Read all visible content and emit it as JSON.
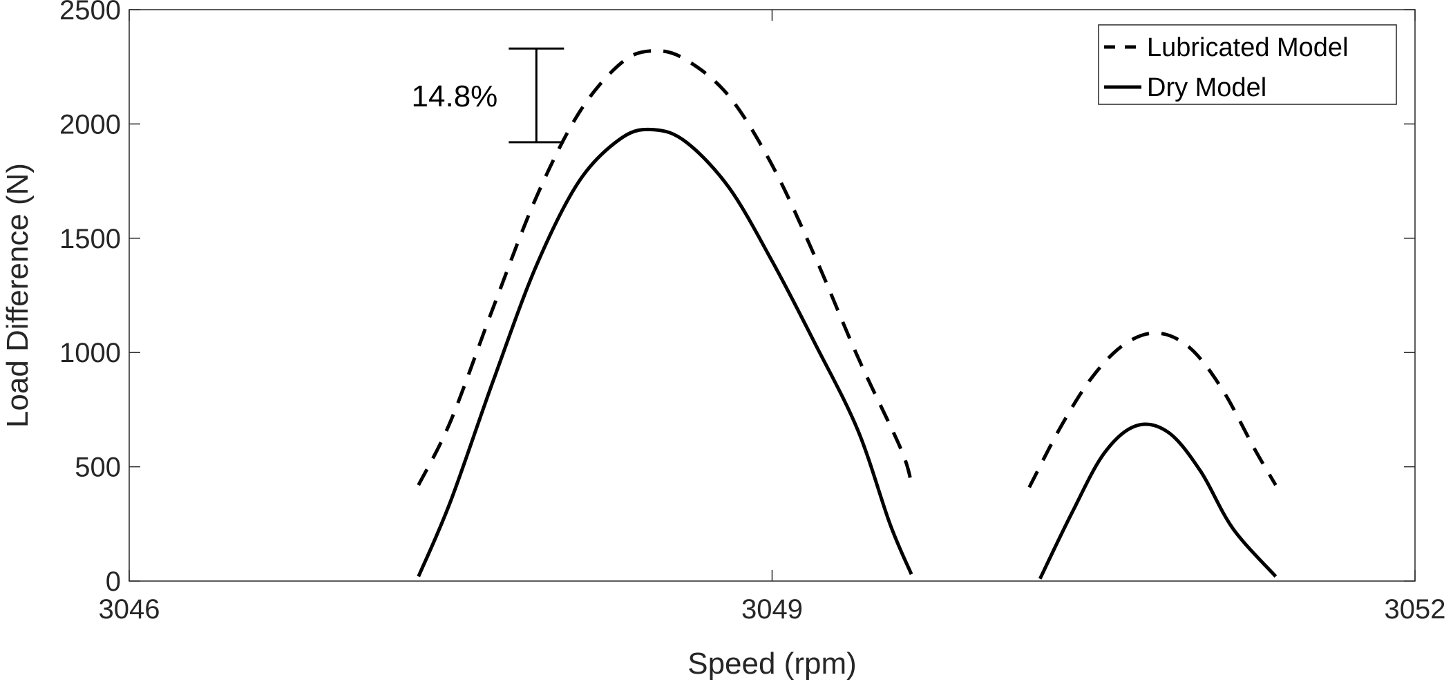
{
  "chart_data": {
    "type": "line",
    "title": "",
    "xlabel": "Speed (rpm)",
    "ylabel": "Load Difference (N)",
    "xlim": [
      3046,
      3052
    ],
    "ylim": [
      0,
      2500
    ],
    "xticks": [
      3046,
      3049,
      3052
    ],
    "yticks": [
      0,
      500,
      1000,
      1500,
      2000,
      2500
    ],
    "grid": false,
    "legend_position": "top-right",
    "series": [
      {
        "name": "Lubricated Model",
        "style": "dashed",
        "color": "#000000",
        "segments": [
          [
            [
              3047.35,
              420
            ],
            [
              3047.5,
              700
            ],
            [
              3047.7,
              1200
            ],
            [
              3047.9,
              1680
            ],
            [
              3048.1,
              2050
            ],
            [
              3048.3,
              2270
            ],
            [
              3048.45,
              2320
            ],
            [
              3048.6,
              2280
            ],
            [
              3048.8,
              2120
            ],
            [
              3049.0,
              1820
            ],
            [
              3049.2,
              1420
            ],
            [
              3049.4,
              980
            ],
            [
              3049.6,
              580
            ],
            [
              3049.65,
              430
            ]
          ],
          [
            [
              3050.2,
              410
            ],
            [
              3050.35,
              680
            ],
            [
              3050.5,
              900
            ],
            [
              3050.65,
              1040
            ],
            [
              3050.8,
              1085
            ],
            [
              3050.95,
              1020
            ],
            [
              3051.1,
              840
            ],
            [
              3051.25,
              580
            ],
            [
              3051.35,
              420
            ]
          ]
        ]
      },
      {
        "name": "Dry Model",
        "style": "solid",
        "color": "#000000",
        "segments": [
          [
            [
              3047.35,
              20
            ],
            [
              3047.5,
              350
            ],
            [
              3047.7,
              880
            ],
            [
              3047.9,
              1380
            ],
            [
              3048.1,
              1750
            ],
            [
              3048.3,
              1940
            ],
            [
              3048.45,
              1975
            ],
            [
              3048.6,
              1920
            ],
            [
              3048.8,
              1720
            ],
            [
              3049.0,
              1400
            ],
            [
              3049.2,
              1040
            ],
            [
              3049.4,
              660
            ],
            [
              3049.55,
              250
            ],
            [
              3049.65,
              30
            ]
          ],
          [
            [
              3050.25,
              10
            ],
            [
              3050.4,
              300
            ],
            [
              3050.55,
              560
            ],
            [
              3050.7,
              680
            ],
            [
              3050.85,
              650
            ],
            [
              3051.0,
              480
            ],
            [
              3051.15,
              230
            ],
            [
              3051.35,
              20
            ]
          ]
        ]
      }
    ],
    "annotations": [
      {
        "text": "14.8%",
        "type": "range-bar",
        "x": 3047.9,
        "y_low": 1920,
        "y_high": 2330
      }
    ]
  }
}
